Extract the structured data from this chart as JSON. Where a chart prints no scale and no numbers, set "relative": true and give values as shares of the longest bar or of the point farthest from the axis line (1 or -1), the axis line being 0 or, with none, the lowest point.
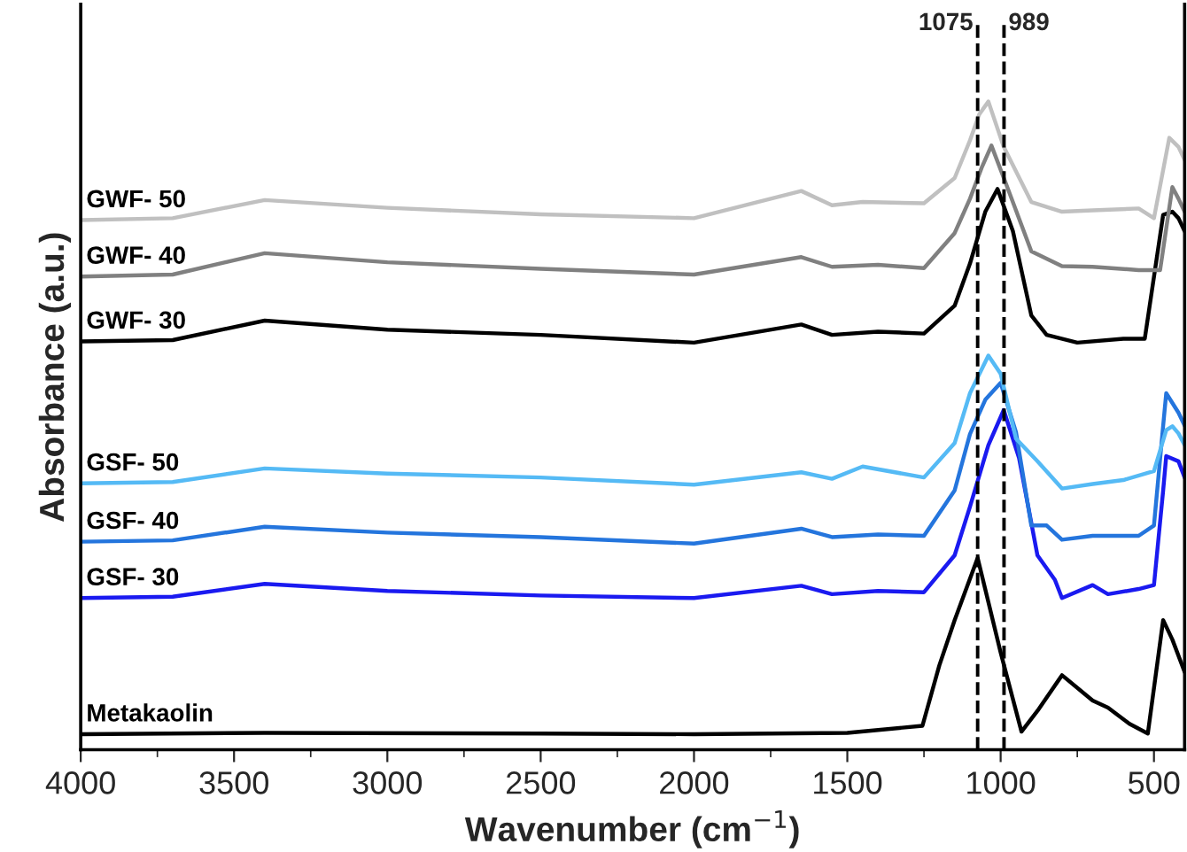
{
  "chart_data": {
    "type": "line",
    "relative": true,
    "xlabel": "Wavenumber (cm$^{−1}$)",
    "ylabel": "Absorbance (a.u.)",
    "xlim": [
      4000,
      400
    ],
    "xticks": [
      4000,
      3500,
      3000,
      2500,
      2000,
      1500,
      1000,
      500
    ],
    "tick_labels": "x",
    "grid": false,
    "legend": false,
    "marker": "none",
    "line_style": "solid",
    "ref_lines": [
      {
        "axis": "x",
        "value": 1075,
        "label": "1075",
        "color": "#000000",
        "line_style": "dashed"
      },
      {
        "axis": "x",
        "value": 989,
        "label": "989",
        "color": "#000000",
        "line_style": "dashed"
      }
    ],
    "series": [
      {
        "name": "Metakaolin",
        "color": "#000000",
        "x": [
          4000,
          3400,
          2500,
          2000,
          1500,
          1255,
          1200,
          1150,
          1075,
          1000,
          932,
          880,
          800,
          700,
          650,
          580,
          520,
          470,
          440,
          400
        ],
        "values": [
          0.024,
          0.026,
          0.025,
          0.024,
          0.026,
          0.037,
          0.13,
          0.2,
          0.296,
          0.15,
          0.028,
          0.06,
          0.115,
          0.076,
          0.065,
          0.04,
          0.025,
          0.2,
          0.17,
          0.12
        ]
      },
      {
        "name": "GSF- 30",
        "color": "#1a1af0",
        "x": [
          4000,
          3700,
          3400,
          3000,
          2500,
          2000,
          1650,
          1550,
          1400,
          1250,
          1150,
          1100,
          1040,
          990,
          940,
          880,
          823,
          800,
          700,
          650,
          550,
          500,
          470,
          460,
          420,
          400
        ],
        "values": [
          0.234,
          0.236,
          0.256,
          0.245,
          0.238,
          0.234,
          0.253,
          0.24,
          0.245,
          0.243,
          0.3,
          0.375,
          0.47,
          0.524,
          0.45,
          0.3,
          0.262,
          0.234,
          0.254,
          0.24,
          0.248,
          0.254,
          0.4,
          0.453,
          0.445,
          0.42
        ]
      },
      {
        "name": "GSF- 40",
        "color": "#2475dd",
        "x": [
          4000,
          3700,
          3400,
          3000,
          2500,
          2000,
          1650,
          1550,
          1400,
          1250,
          1150,
          1100,
          1050,
          1000,
          950,
          900,
          850,
          800,
          700,
          550,
          500,
          470,
          460,
          420,
          400
        ],
        "values": [
          0.321,
          0.323,
          0.344,
          0.335,
          0.328,
          0.318,
          0.341,
          0.328,
          0.332,
          0.33,
          0.4,
          0.487,
          0.54,
          0.566,
          0.49,
          0.346,
          0.346,
          0.324,
          0.33,
          0.33,
          0.346,
          0.5,
          0.55,
          0.52,
          0.5
        ]
      },
      {
        "name": "GSF- 50",
        "color": "#55baf5",
        "x": [
          4000,
          3700,
          3400,
          3000,
          2500,
          2000,
          1650,
          1550,
          1450,
          1250,
          1150,
          1100,
          1040,
          1000,
          950,
          880,
          800,
          700,
          600,
          500,
          460,
          440,
          420,
          400
        ],
        "values": [
          0.411,
          0.413,
          0.434,
          0.426,
          0.42,
          0.409,
          0.428,
          0.418,
          0.437,
          0.42,
          0.473,
          0.55,
          0.608,
          0.58,
          0.48,
          0.445,
          0.403,
          0.41,
          0.416,
          0.43,
          0.493,
          0.499,
          0.488,
          0.47
        ]
      },
      {
        "name": "GWF- 30",
        "color": "#000000",
        "x": [
          4000,
          3700,
          3400,
          3000,
          2500,
          2000,
          1650,
          1550,
          1400,
          1250,
          1150,
          1100,
          1050,
          1010,
          960,
          900,
          850,
          750,
          600,
          530,
          470,
          440,
          420,
          400
        ],
        "values": [
          0.63,
          0.632,
          0.662,
          0.648,
          0.64,
          0.628,
          0.656,
          0.64,
          0.645,
          0.642,
          0.685,
          0.75,
          0.83,
          0.865,
          0.8,
          0.67,
          0.64,
          0.628,
          0.634,
          0.634,
          0.825,
          0.83,
          0.82,
          0.8
        ]
      },
      {
        "name": "GWF- 40",
        "color": "#808080",
        "x": [
          4000,
          3700,
          3400,
          3000,
          2500,
          2000,
          1650,
          1550,
          1400,
          1250,
          1150,
          1100,
          1060,
          1030,
          980,
          900,
          800,
          700,
          550,
          480,
          440,
          420,
          400
        ],
        "values": [
          0.73,
          0.733,
          0.766,
          0.752,
          0.742,
          0.733,
          0.76,
          0.745,
          0.748,
          0.743,
          0.797,
          0.85,
          0.9,
          0.932,
          0.87,
          0.769,
          0.746,
          0.745,
          0.74,
          0.74,
          0.868,
          0.85,
          0.83
        ]
      },
      {
        "name": "GWF- 50",
        "color": "#c0c0c0",
        "x": [
          4000,
          3700,
          3400,
          3000,
          2500,
          2000,
          1650,
          1550,
          1450,
          1250,
          1150,
          1100,
          1070,
          1040,
          990,
          900,
          800,
          700,
          550,
          500,
          450,
          420,
          400
        ],
        "values": [
          0.817,
          0.82,
          0.848,
          0.836,
          0.826,
          0.82,
          0.862,
          0.84,
          0.845,
          0.843,
          0.882,
          0.94,
          0.98,
          1.0,
          0.93,
          0.845,
          0.83,
          0.832,
          0.835,
          0.82,
          0.944,
          0.93,
          0.91
        ]
      }
    ]
  }
}
